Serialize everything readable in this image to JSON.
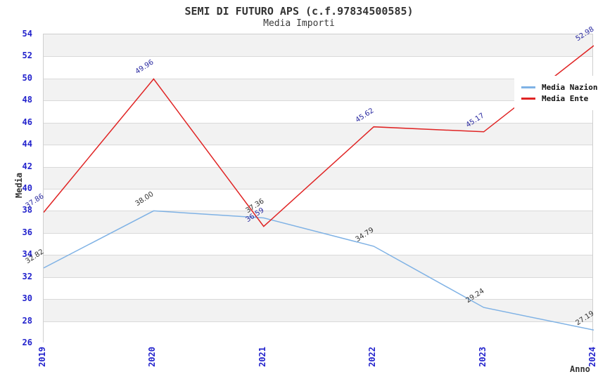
{
  "chart_data": {
    "type": "line",
    "title": "SEMI DI FUTURO APS (c.f.97834500585)",
    "subtitle": "Media Importi",
    "xlabel": "Anno",
    "ylabel": "Media",
    "categories": [
      "2019",
      "2020",
      "2021",
      "2022",
      "2023",
      "2024"
    ],
    "ylim": [
      26,
      54
    ],
    "ytick_step": 2,
    "grid": "horizontal-bands",
    "legend_position": "top-right",
    "colors": {
      "tick_label": "#2222cc",
      "band_fill": "#f2f2f2",
      "gridline": "#d9d9d9",
      "plot_border": "#cfcfcf",
      "title_text": "#333333"
    },
    "series": [
      {
        "name": "Media Nazionale",
        "color": "#7fb2e5",
        "label_color": "#333333",
        "values": [
          32.82,
          38.0,
          37.36,
          34.79,
          29.24,
          27.19
        ]
      },
      {
        "name": "Media Ente",
        "color": "#e02424",
        "label_color": "#2a2aa0",
        "values": [
          37.86,
          49.96,
          36.59,
          45.62,
          45.17,
          52.98
        ]
      }
    ]
  }
}
